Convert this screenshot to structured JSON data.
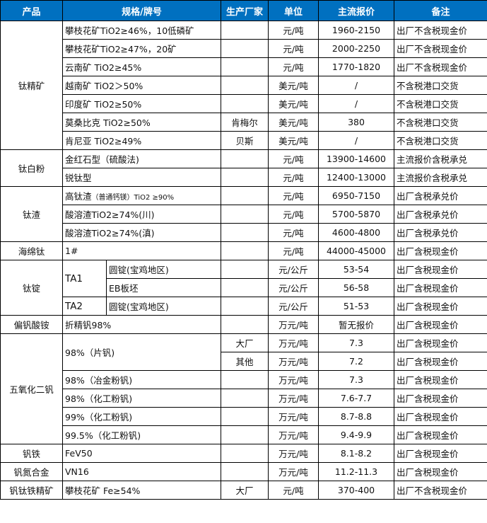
{
  "colors": {
    "header_bg": "#0070C0",
    "header_text": "#FFFFFF"
  },
  "header": [
    "产品",
    "规格/牌号",
    "生产厂家",
    "单位",
    "主流报价",
    "备注"
  ],
  "groups": [
    {
      "product": "钛精矿",
      "rows": [
        {
          "spec": "攀枝花矿TiO2≥46%，10低磷矿",
          "maker": "",
          "unit": "元/吨",
          "price": "1960-2150",
          "note": "出厂不含税现金价"
        },
        {
          "spec": "攀枝花矿TiO2≥47%，20矿",
          "maker": "",
          "unit": "元/吨",
          "price": "2000-2250",
          "note": "出厂不含税现金价"
        },
        {
          "spec": "云南矿 TiO2≥45%",
          "maker": "",
          "unit": "元/吨",
          "price": "1770-1820",
          "note": "出厂不含税现金价"
        },
        {
          "spec": "越南矿 TiO2＞50%",
          "maker": "",
          "unit": "美元/吨",
          "price": "/",
          "note": "不含税港口交货"
        },
        {
          "spec": "印度矿 TiO2≥50%",
          "maker": "",
          "unit": "美元/吨",
          "price": "/",
          "note": "不含税港口交货"
        },
        {
          "spec": "莫桑比克 TiO2≥50%",
          "maker": "肯梅尔",
          "unit": "美元/吨",
          "price": "380",
          "note": "不含税港口交货"
        },
        {
          "spec": "肯尼亚 TiO2≥49%",
          "maker": "贝斯",
          "unit": "美元/吨",
          "price": "/",
          "note": "不含税港口交货"
        }
      ]
    },
    {
      "product": "钛白粉",
      "rows": [
        {
          "spec": "金红石型（硫酸法)",
          "maker": "",
          "unit": "元/吨",
          "price": "13900-14600",
          "note": "主流报价含税承兑"
        },
        {
          "spec": "锐钛型",
          "maker": "",
          "unit": "元/吨",
          "price": "12400-13000",
          "note": "主流报价含税承兑"
        }
      ]
    },
    {
      "product": "钛渣",
      "rows": [
        {
          "spec": "高钛渣",
          "spec_note": "（普通钙镁）TiO2 ≥90%",
          "maker": "",
          "unit": "元/吨",
          "price": "6950-7150",
          "note": "出厂含税承兑价"
        },
        {
          "spec": "酸溶渣TiO2≥74%(川)",
          "maker": "",
          "unit": "元/吨",
          "price": "5700-5870",
          "note": "出厂含税承兑价"
        },
        {
          "spec": "酸溶渣TiO2≥74%(滇)",
          "maker": "",
          "unit": "元/吨",
          "price": "4600-4800",
          "note": "出厂含税承兑价"
        }
      ]
    },
    {
      "product": "海绵钛",
      "rows": [
        {
          "spec": "1#",
          "maker": "",
          "unit": "元/吨",
          "price": "44000-45000",
          "note": "出厂含税现金价"
        }
      ]
    },
    {
      "product": "钛锭",
      "rows": [
        {
          "grade": "TA1",
          "spec": "圆锭(宝鸡地区)",
          "maker": "",
          "unit": "元/公斤",
          "price": "53-54",
          "note": "出厂含税现金价"
        },
        {
          "grade": "TA1",
          "spec": "EB板坯",
          "maker": "",
          "unit": "元/公斤",
          "price": "56-58",
          "note": "出厂含税现金价"
        },
        {
          "grade": "TA2",
          "spec": "圆锭(宝鸡地区)",
          "maker": "",
          "unit": "元/公斤",
          "price": "51-53",
          "note": "出厂含税现金价"
        }
      ]
    },
    {
      "product": "偏钒酸铵",
      "rows": [
        {
          "spec": "折精钒98%",
          "maker": "",
          "unit": "万元/吨",
          "price": "暂无报价",
          "note": "出厂含税现金价"
        }
      ]
    },
    {
      "product": "五氧化二钒",
      "rows": [
        {
          "spec": "98%（片钒)",
          "maker": "大厂",
          "unit": "万元/吨",
          "price": "7.3",
          "note": "出厂含税现金价"
        },
        {
          "spec": "98%（片钒)",
          "maker": "其他",
          "unit": "万元/吨",
          "price": "7.2",
          "note": "出厂含税现金价"
        },
        {
          "spec": "98%（冶金粉钒)",
          "maker": "",
          "unit": "万元/吨",
          "price": "7.3",
          "note": "出厂含税现金价"
        },
        {
          "spec": "98%（化工粉钒)",
          "maker": "",
          "unit": "万元/吨",
          "price": "7.6-7.7",
          "note": "出厂含税现金价"
        },
        {
          "spec": "99%（化工粉钒)",
          "maker": "",
          "unit": "万元/吨",
          "price": "8.7-8.8",
          "note": "出厂含税现金价"
        },
        {
          "spec": "99.5%（化工粉钒)",
          "maker": "",
          "unit": "万元/吨",
          "price": "9.4-9.9",
          "note": "出厂含税现金价"
        }
      ]
    },
    {
      "product": "钒铁",
      "rows": [
        {
          "spec": "FeV50",
          "maker": "",
          "unit": "万元/吨",
          "price": "8.1-8.2",
          "note": "出厂含税现金价"
        }
      ]
    },
    {
      "product": "钒氮合金",
      "rows": [
        {
          "spec": "VN16",
          "maker": "",
          "unit": "万元/吨",
          "price": "11.2-11.3",
          "note": "出厂含税现金价"
        }
      ]
    },
    {
      "product": "钒钛铁精矿",
      "rows": [
        {
          "spec": "攀枝花矿 Fe≥54%",
          "maker": "大厂",
          "unit": "元/吨",
          "price": "370-400",
          "note": "出厂不含税现金价"
        }
      ]
    }
  ]
}
